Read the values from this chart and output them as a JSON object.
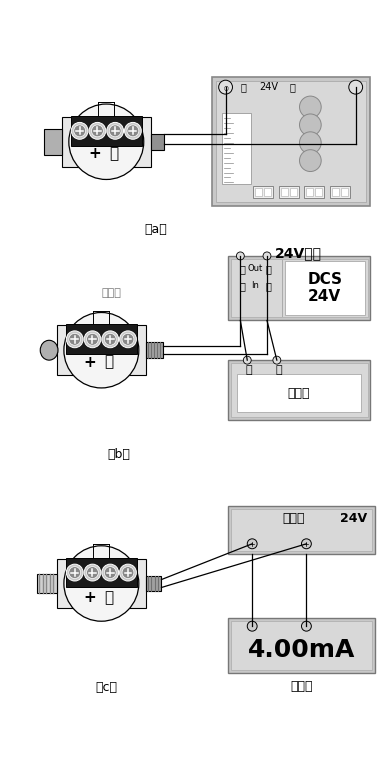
{
  "bg_color": "#ffffff",
  "lc": "#000000",
  "gray_fill": "#cccccc",
  "mid_gray": "#aaaaaa",
  "dark_gray": "#888888",
  "box_fill": "#d0d0d0",
  "box_edge": "#666666",
  "terminal_fill": "#1a1a1a",
  "white": "#ffffff",
  "label_a": "（a）",
  "label_b": "（b）",
  "label_c": "（c）",
  "label_transmitter": "变送器",
  "label_24v_power": "24V电源",
  "label_dcs": "DCS\n24V",
  "label_display": "显示器",
  "label_safety": "安全栅",
  "label_24v": "24V",
  "label_current": "4.00mA",
  "label_current_meter": "电流表",
  "label_plus": "+",
  "label_minus": "-",
  "label_out": "Out",
  "label_in": "In"
}
